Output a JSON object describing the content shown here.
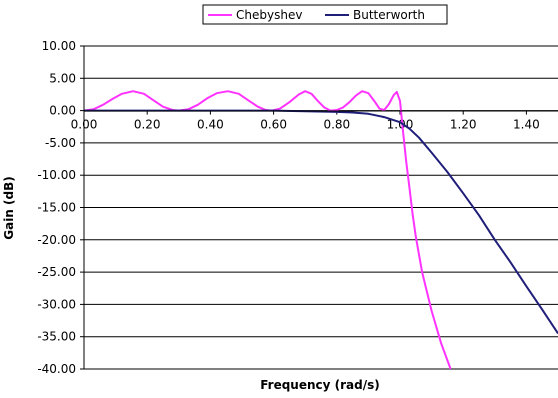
{
  "chart_data": {
    "type": "line",
    "title": "",
    "xlabel": "Frequency (rad/s)",
    "ylabel": "Gain (dB)",
    "xlim": [
      0,
      1.5
    ],
    "ylim": [
      -40,
      10
    ],
    "x_ticks": [
      "0.00",
      "0.20",
      "0.40",
      "0.60",
      "0.80",
      "1.00",
      "1.20",
      "1.40"
    ],
    "y_ticks": [
      "10.00",
      "5.00",
      "0.00",
      "-5.00",
      "-10.00",
      "-15.00",
      "-20.00",
      "-25.00",
      "-30.00",
      "-35.00",
      "-40.00"
    ],
    "grid": "horizontal",
    "legend_position": "top",
    "series": [
      {
        "name": "Chebyshev",
        "color": "#ff33ff",
        "points": [
          [
            0.0,
            0.0
          ],
          [
            0.03,
            0.2
          ],
          [
            0.06,
            0.9
          ],
          [
            0.09,
            1.8
          ],
          [
            0.12,
            2.6
          ],
          [
            0.155,
            3.0
          ],
          [
            0.19,
            2.6
          ],
          [
            0.22,
            1.6
          ],
          [
            0.25,
            0.6
          ],
          [
            0.28,
            0.1
          ],
          [
            0.3,
            0.0
          ],
          [
            0.33,
            0.2
          ],
          [
            0.36,
            0.9
          ],
          [
            0.39,
            1.9
          ],
          [
            0.42,
            2.7
          ],
          [
            0.455,
            3.0
          ],
          [
            0.49,
            2.6
          ],
          [
            0.52,
            1.6
          ],
          [
            0.55,
            0.6
          ],
          [
            0.575,
            0.1
          ],
          [
            0.595,
            0.0
          ],
          [
            0.62,
            0.3
          ],
          [
            0.65,
            1.3
          ],
          [
            0.68,
            2.5
          ],
          [
            0.7,
            3.0
          ],
          [
            0.72,
            2.6
          ],
          [
            0.74,
            1.5
          ],
          [
            0.76,
            0.5
          ],
          [
            0.78,
            0.0
          ],
          [
            0.8,
            0.1
          ],
          [
            0.82,
            0.5
          ],
          [
            0.84,
            1.3
          ],
          [
            0.86,
            2.3
          ],
          [
            0.88,
            3.0
          ],
          [
            0.9,
            2.7
          ],
          [
            0.92,
            1.4
          ],
          [
            0.935,
            0.3
          ],
          [
            0.95,
            0.1
          ],
          [
            0.965,
            1.0
          ],
          [
            0.98,
            2.4
          ],
          [
            0.99,
            2.9
          ],
          [
            1.0,
            1.5
          ],
          [
            1.005,
            -1.0
          ],
          [
            1.01,
            -3.5
          ],
          [
            1.02,
            -8.0
          ],
          [
            1.03,
            -12.0
          ],
          [
            1.04,
            -16.0
          ],
          [
            1.05,
            -19.5
          ],
          [
            1.07,
            -25.0
          ],
          [
            1.1,
            -31.0
          ],
          [
            1.13,
            -36.0
          ],
          [
            1.16,
            -40.0
          ]
        ]
      },
      {
        "name": "Butterworth",
        "color": "#1f1f7a",
        "points": [
          [
            0.0,
            0.0
          ],
          [
            0.1,
            0.0
          ],
          [
            0.2,
            0.0
          ],
          [
            0.3,
            0.0
          ],
          [
            0.4,
            0.0
          ],
          [
            0.5,
            0.0
          ],
          [
            0.6,
            0.0
          ],
          [
            0.7,
            -0.1
          ],
          [
            0.8,
            -0.2
          ],
          [
            0.85,
            -0.3
          ],
          [
            0.9,
            -0.5
          ],
          [
            0.95,
            -1.0
          ],
          [
            1.0,
            -1.8
          ],
          [
            1.03,
            -2.8
          ],
          [
            1.06,
            -4.2
          ],
          [
            1.1,
            -6.5
          ],
          [
            1.15,
            -9.5
          ],
          [
            1.2,
            -12.8
          ],
          [
            1.25,
            -16.2
          ],
          [
            1.3,
            -20.0
          ],
          [
            1.35,
            -23.5
          ],
          [
            1.4,
            -27.2
          ],
          [
            1.45,
            -30.8
          ],
          [
            1.5,
            -34.5
          ]
        ]
      }
    ]
  }
}
